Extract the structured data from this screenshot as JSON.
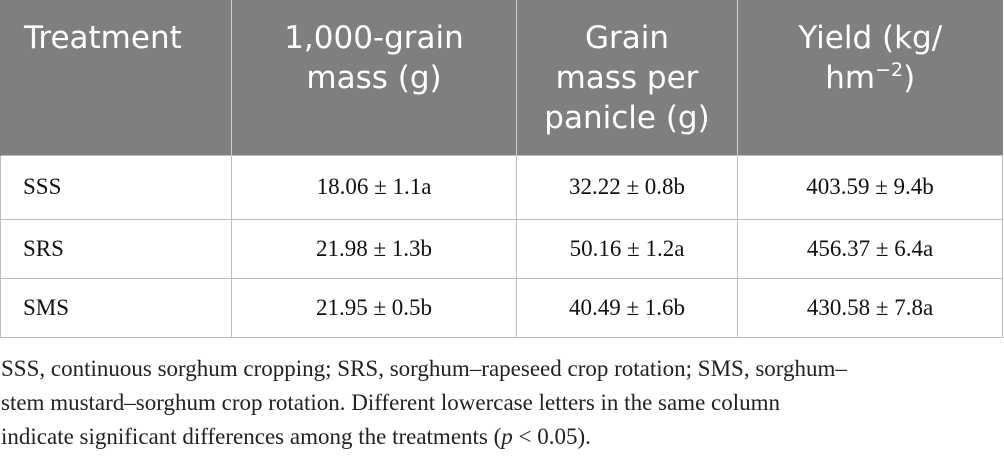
{
  "table": {
    "headers": [
      {
        "lines": [
          "Treatment"
        ]
      },
      {
        "lines": [
          "1,000-grain",
          "mass (g)"
        ]
      },
      {
        "lines": [
          "Grain",
          "mass per",
          "panicle (g)"
        ]
      },
      {
        "lines": [
          "Yield (kg/",
          "hm",
          "−2",
          ")"
        ]
      }
    ],
    "rows": [
      {
        "treatment": "SSS",
        "grain_mass": "18.06 ± 1.1a",
        "panicle_mass": "32.22 ± 0.8b",
        "yield": "403.59 ± 9.4b"
      },
      {
        "treatment": "SRS",
        "grain_mass": "21.98 ± 1.3b",
        "panicle_mass": "50.16 ± 1.2a",
        "yield": "456.37 ± 6.4a"
      },
      {
        "treatment": "SMS",
        "grain_mass": "21.95 ± 0.5b",
        "panicle_mass": "40.49 ± 1.6b",
        "yield": "430.58 ± 7.8a"
      }
    ]
  },
  "footnote": {
    "line1": "SSS, continuous sorghum cropping; SRS, sorghum–rapeseed crop rotation; SMS, sorghum–",
    "line2": "stem mustard–sorghum crop rotation. Different lowercase letters in the same column",
    "line3_pre": "indicate significant differences among the treatments (",
    "line3_p": "p",
    "line3_post": " < 0.05)."
  }
}
